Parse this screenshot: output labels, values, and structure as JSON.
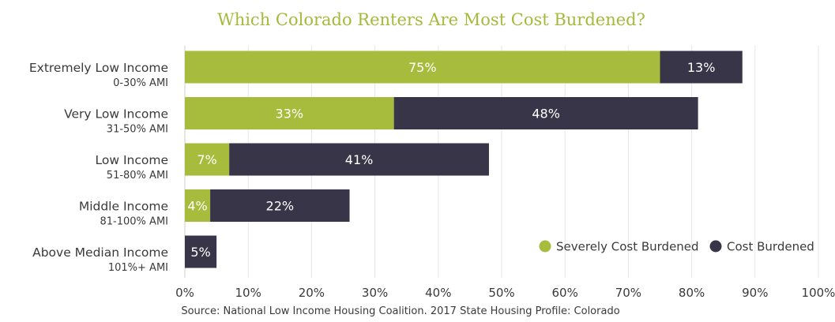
{
  "chart_data": {
    "type": "bar",
    "orientation": "horizontal",
    "stacked": true,
    "title": "Which Colorado Renters Are Most Cost Burdened?",
    "categories": [
      {
        "label": "Extremely Low Income",
        "sublabel": "0-30% AMI"
      },
      {
        "label": "Very Low Income",
        "sublabel": "31-50% AMI"
      },
      {
        "label": "Low Income",
        "sublabel": "51-80% AMI"
      },
      {
        "label": "Middle Income",
        "sublabel": "81-100% AMI"
      },
      {
        "label": "Above Median Income",
        "sublabel": "101%+ AMI"
      }
    ],
    "series": [
      {
        "name": "Severely Cost Burdened",
        "color": "#a7bb3c",
        "values": [
          75,
          33,
          7,
          4,
          0
        ],
        "data_labels": [
          "75%",
          "33%",
          "7%",
          "4%",
          ""
        ]
      },
      {
        "name": "Cost Burdened",
        "color": "#393548",
        "values": [
          13,
          48,
          41,
          22,
          5
        ],
        "data_labels": [
          "13%",
          "48%",
          "41%",
          "22%",
          "5%"
        ]
      }
    ],
    "xlim": [
      0,
      100
    ],
    "x_ticks": [
      "0%",
      "10%",
      "20%",
      "30%",
      "40%",
      "50%",
      "60%",
      "70%",
      "80%",
      "90%",
      "100%"
    ],
    "grid": true,
    "legend_position": "bottom-right"
  },
  "source": "Source: National Low Income Housing Coalition. 2017 State Housing Profile: Colorado"
}
